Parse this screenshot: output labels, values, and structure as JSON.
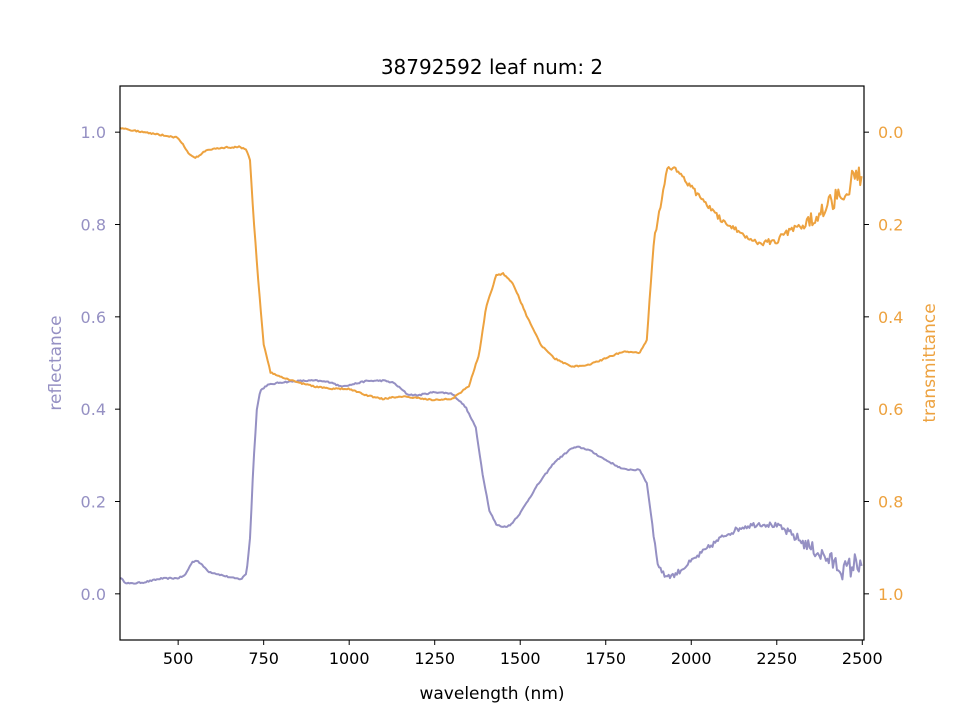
{
  "chart_data": {
    "type": "line",
    "title": "38792592 leaf num: 2",
    "xlabel": "wavelength (nm)",
    "xlim": [
      330,
      2505
    ],
    "x_ticks": [
      500,
      750,
      1000,
      1250,
      1500,
      1750,
      2000,
      2250,
      2500
    ],
    "left_axis": {
      "label": "reflectance",
      "lim": [
        -0.1,
        1.1
      ],
      "ticks": [
        0.0,
        0.2,
        0.4,
        0.6,
        0.8,
        1.0
      ],
      "tick_labels": [
        "0.0",
        "0.2",
        "0.4",
        "0.6",
        "0.8",
        "1.0"
      ],
      "color": "#9590c3"
    },
    "right_axis": {
      "label": "transmittance",
      "lim": [
        1.1,
        -0.1
      ],
      "inverted": true,
      "ticks": [
        0.0,
        0.2,
        0.4,
        0.6,
        0.8,
        1.0
      ],
      "tick_labels": [
        "0.0",
        "0.2",
        "0.4",
        "0.6",
        "0.8",
        "1.0"
      ],
      "color": "#eda23f"
    },
    "grid": false,
    "series": [
      {
        "axis": "left",
        "color": "#9590c3",
        "noise_from": 1890,
        "points": [
          [
            330,
            0.035
          ],
          [
            345,
            0.025
          ],
          [
            360,
            0.022
          ],
          [
            400,
            0.025
          ],
          [
            450,
            0.033
          ],
          [
            500,
            0.034
          ],
          [
            520,
            0.04
          ],
          [
            540,
            0.068
          ],
          [
            555,
            0.073
          ],
          [
            570,
            0.062
          ],
          [
            590,
            0.048
          ],
          [
            620,
            0.042
          ],
          [
            660,
            0.034
          ],
          [
            685,
            0.032
          ],
          [
            700,
            0.045
          ],
          [
            710,
            0.12
          ],
          [
            720,
            0.28
          ],
          [
            730,
            0.4
          ],
          [
            740,
            0.44
          ],
          [
            760,
            0.452
          ],
          [
            800,
            0.458
          ],
          [
            850,
            0.461
          ],
          [
            900,
            0.462
          ],
          [
            950,
            0.458
          ],
          [
            970,
            0.45
          ],
          [
            1000,
            0.452
          ],
          [
            1050,
            0.461
          ],
          [
            1100,
            0.462
          ],
          [
            1130,
            0.457
          ],
          [
            1150,
            0.445
          ],
          [
            1170,
            0.432
          ],
          [
            1200,
            0.43
          ],
          [
            1250,
            0.437
          ],
          [
            1300,
            0.434
          ],
          [
            1340,
            0.405
          ],
          [
            1370,
            0.36
          ],
          [
            1390,
            0.26
          ],
          [
            1410,
            0.18
          ],
          [
            1430,
            0.15
          ],
          [
            1450,
            0.145
          ],
          [
            1470,
            0.148
          ],
          [
            1500,
            0.175
          ],
          [
            1550,
            0.235
          ],
          [
            1600,
            0.285
          ],
          [
            1650,
            0.315
          ],
          [
            1670,
            0.318
          ],
          [
            1700,
            0.312
          ],
          [
            1750,
            0.29
          ],
          [
            1800,
            0.27
          ],
          [
            1850,
            0.268
          ],
          [
            1870,
            0.24
          ],
          [
            1890,
            0.13
          ],
          [
            1900,
            0.07
          ],
          [
            1920,
            0.04
          ],
          [
            1950,
            0.04
          ],
          [
            2000,
            0.07
          ],
          [
            2050,
            0.1
          ],
          [
            2100,
            0.128
          ],
          [
            2150,
            0.145
          ],
          [
            2200,
            0.152
          ],
          [
            2250,
            0.148
          ],
          [
            2300,
            0.125
          ],
          [
            2350,
            0.1
          ],
          [
            2400,
            0.075
          ],
          [
            2450,
            0.05
          ],
          [
            2500,
            0.075
          ]
        ]
      },
      {
        "axis": "right",
        "color": "#eda23f",
        "noise_from": 1890,
        "points": [
          [
            330,
            -0.01
          ],
          [
            360,
            -0.005
          ],
          [
            400,
            0.0
          ],
          [
            450,
            0.006
          ],
          [
            500,
            0.012
          ],
          [
            510,
            0.022
          ],
          [
            530,
            0.045
          ],
          [
            550,
            0.055
          ],
          [
            560,
            0.052
          ],
          [
            580,
            0.04
          ],
          [
            620,
            0.034
          ],
          [
            680,
            0.032
          ],
          [
            700,
            0.038
          ],
          [
            710,
            0.06
          ],
          [
            720,
            0.18
          ],
          [
            735,
            0.33
          ],
          [
            750,
            0.46
          ],
          [
            770,
            0.52
          ],
          [
            800,
            0.531
          ],
          [
            850,
            0.542
          ],
          [
            900,
            0.551
          ],
          [
            950,
            0.556
          ],
          [
            1000,
            0.556
          ],
          [
            1050,
            0.57
          ],
          [
            1100,
            0.578
          ],
          [
            1150,
            0.572
          ],
          [
            1200,
            0.576
          ],
          [
            1250,
            0.58
          ],
          [
            1300,
            0.578
          ],
          [
            1350,
            0.55
          ],
          [
            1380,
            0.48
          ],
          [
            1400,
            0.38
          ],
          [
            1430,
            0.31
          ],
          [
            1450,
            0.306
          ],
          [
            1480,
            0.33
          ],
          [
            1520,
            0.4
          ],
          [
            1560,
            0.46
          ],
          [
            1600,
            0.49
          ],
          [
            1650,
            0.508
          ],
          [
            1700,
            0.504
          ],
          [
            1750,
            0.49
          ],
          [
            1800,
            0.475
          ],
          [
            1850,
            0.478
          ],
          [
            1870,
            0.45
          ],
          [
            1890,
            0.24
          ],
          [
            1910,
            0.16
          ],
          [
            1930,
            0.08
          ],
          [
            1950,
            0.075
          ],
          [
            2000,
            0.12
          ],
          [
            2050,
            0.16
          ],
          [
            2100,
            0.2
          ],
          [
            2150,
            0.22
          ],
          [
            2200,
            0.24
          ],
          [
            2250,
            0.235
          ],
          [
            2300,
            0.205
          ],
          [
            2350,
            0.19
          ],
          [
            2400,
            0.16
          ],
          [
            2450,
            0.12
          ],
          [
            2500,
            0.09
          ]
        ]
      }
    ]
  }
}
